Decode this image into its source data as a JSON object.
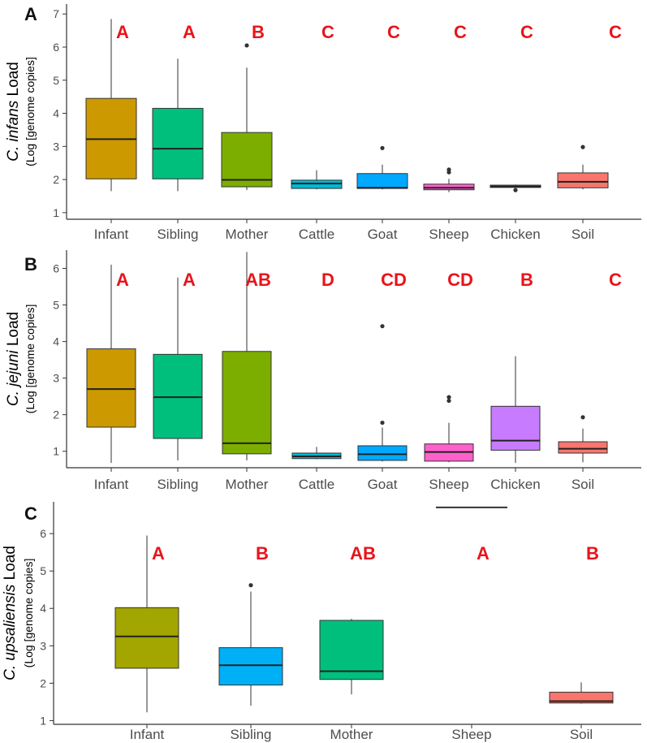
{
  "chart_data": [
    {
      "type": "boxplot",
      "panel": "A",
      "ylabel": {
        "species": "C. infans",
        "suffix": " Load",
        "units": "(Log [genome copies]"
      },
      "ylim": [
        0.8,
        7.3
      ],
      "yticks": [
        1,
        2,
        3,
        4,
        5,
        6,
        7
      ],
      "categories": [
        "Infant",
        "Sibling",
        "Mother",
        "Cattle",
        "Goat",
        "Sheep",
        "Chicken",
        "Soil"
      ],
      "letters": [
        "A",
        "A",
        "B",
        "C",
        "C",
        "C",
        "C",
        "C"
      ],
      "colors": [
        "#CC9900",
        "#00BF7D",
        "#7CAE00",
        "#00B8D4",
        "#00A9FF",
        "#FF61CC",
        "#C77CFF",
        "#F8766D"
      ],
      "boxes": [
        {
          "min": 1.65,
          "q1": 2.02,
          "median": 3.22,
          "q3": 4.45,
          "max": 6.85,
          "outliers": []
        },
        {
          "min": 1.65,
          "q1": 2.02,
          "median": 2.93,
          "q3": 4.15,
          "max": 5.65,
          "outliers": []
        },
        {
          "min": 1.68,
          "q1": 1.78,
          "median": 1.99,
          "q3": 3.42,
          "max": 5.38,
          "outliers": [
            6.05
          ]
        },
        {
          "min": 1.7,
          "q1": 1.73,
          "median": 1.88,
          "q3": 1.98,
          "max": 2.28,
          "outliers": []
        },
        {
          "min": 1.7,
          "q1": 1.73,
          "median": 1.75,
          "q3": 2.18,
          "max": 2.45,
          "outliers": [
            2.95
          ]
        },
        {
          "min": 1.62,
          "q1": 1.69,
          "median": 1.75,
          "q3": 1.86,
          "max": 2.02,
          "outliers": [
            2.22,
            2.3
          ]
        },
        {
          "min": 1.74,
          "q1": 1.76,
          "median": 1.79,
          "q3": 1.83,
          "max": 1.85,
          "outliers": [
            1.68
          ]
        },
        {
          "min": 1.7,
          "q1": 1.75,
          "median": 1.93,
          "q3": 2.2,
          "max": 2.45,
          "outliers": [
            2.98
          ]
        }
      ]
    },
    {
      "type": "boxplot",
      "panel": "B",
      "ylabel": {
        "species": "C. jejuni",
        "suffix": " Load",
        "units": "(Log [genome copies]"
      },
      "ylim": [
        0.55,
        6.5
      ],
      "yticks": [
        1,
        2,
        3,
        4,
        5,
        6
      ],
      "categories": [
        "Infant",
        "Sibling",
        "Mother",
        "Cattle",
        "Goat",
        "Sheep",
        "Chicken",
        "Soil"
      ],
      "letters": [
        "A",
        "A",
        "AB",
        "D",
        "CD",
        "CD",
        "B",
        "C"
      ],
      "colors": [
        "#CC9900",
        "#00BF7D",
        "#7CAE00",
        "#00B8D4",
        "#00A9FF",
        "#FF61CC",
        "#C77CFF",
        "#F8766D"
      ],
      "boxes": [
        {
          "min": 0.68,
          "q1": 1.66,
          "median": 2.7,
          "q3": 3.8,
          "max": 6.1,
          "outliers": []
        },
        {
          "min": 0.75,
          "q1": 1.35,
          "median": 2.48,
          "q3": 3.65,
          "max": 5.75,
          "outliers": []
        },
        {
          "min": 0.75,
          "q1": 0.93,
          "median": 1.22,
          "q3": 3.73,
          "max": 6.45,
          "outliers": []
        },
        {
          "min": 0.78,
          "q1": 0.8,
          "median": 0.86,
          "q3": 0.95,
          "max": 1.12,
          "outliers": []
        },
        {
          "min": 0.72,
          "q1": 0.75,
          "median": 0.92,
          "q3": 1.15,
          "max": 1.65,
          "outliers": [
            1.78,
            4.42
          ]
        },
        {
          "min": 0.7,
          "q1": 0.73,
          "median": 0.98,
          "q3": 1.2,
          "max": 1.78,
          "outliers": [
            2.38,
            2.48
          ]
        },
        {
          "min": 0.68,
          "q1": 1.03,
          "median": 1.29,
          "q3": 2.23,
          "max": 3.6,
          "outliers": []
        },
        {
          "min": 0.7,
          "q1": 0.95,
          "median": 1.07,
          "q3": 1.26,
          "max": 1.62,
          "outliers": [
            1.93
          ]
        }
      ]
    },
    {
      "type": "boxplot",
      "panel": "C",
      "ylabel": {
        "species": "C. upsaliensis",
        "suffix": " Load",
        "units": "(Log [genome copies]"
      },
      "ylim": [
        0.9,
        6.85
      ],
      "yticks": [
        1,
        2,
        3,
        4,
        5,
        6
      ],
      "categories": [
        "Infant",
        "Sibling",
        "Mother",
        "Sheep",
        "Soil"
      ],
      "letters": [
        "A",
        "B",
        "AB",
        "A",
        "B"
      ],
      "colors": [
        "#A3A500",
        "#00B0F6",
        "#00BF7D",
        "#E76BF3",
        "#F8766D"
      ],
      "boxes": [
        {
          "min": 1.22,
          "q1": 2.4,
          "median": 3.25,
          "q3": 4.02,
          "max": 5.95,
          "outliers": []
        },
        {
          "min": 1.4,
          "q1": 1.95,
          "median": 2.48,
          "q3": 2.95,
          "max": 4.45,
          "outliers": [
            4.62
          ]
        },
        {
          "min": 1.7,
          "q1": 2.1,
          "median": 2.32,
          "q3": 3.68,
          "max": 3.72,
          "outliers": []
        },
        {
          "min": 6.7,
          "q1": 6.7,
          "median": 6.7,
          "q3": 6.7,
          "max": 6.7,
          "outliers": []
        },
        {
          "min": 1.45,
          "q1": 1.47,
          "median": 1.52,
          "q3": 1.76,
          "max": 2.02,
          "outliers": []
        }
      ]
    }
  ]
}
